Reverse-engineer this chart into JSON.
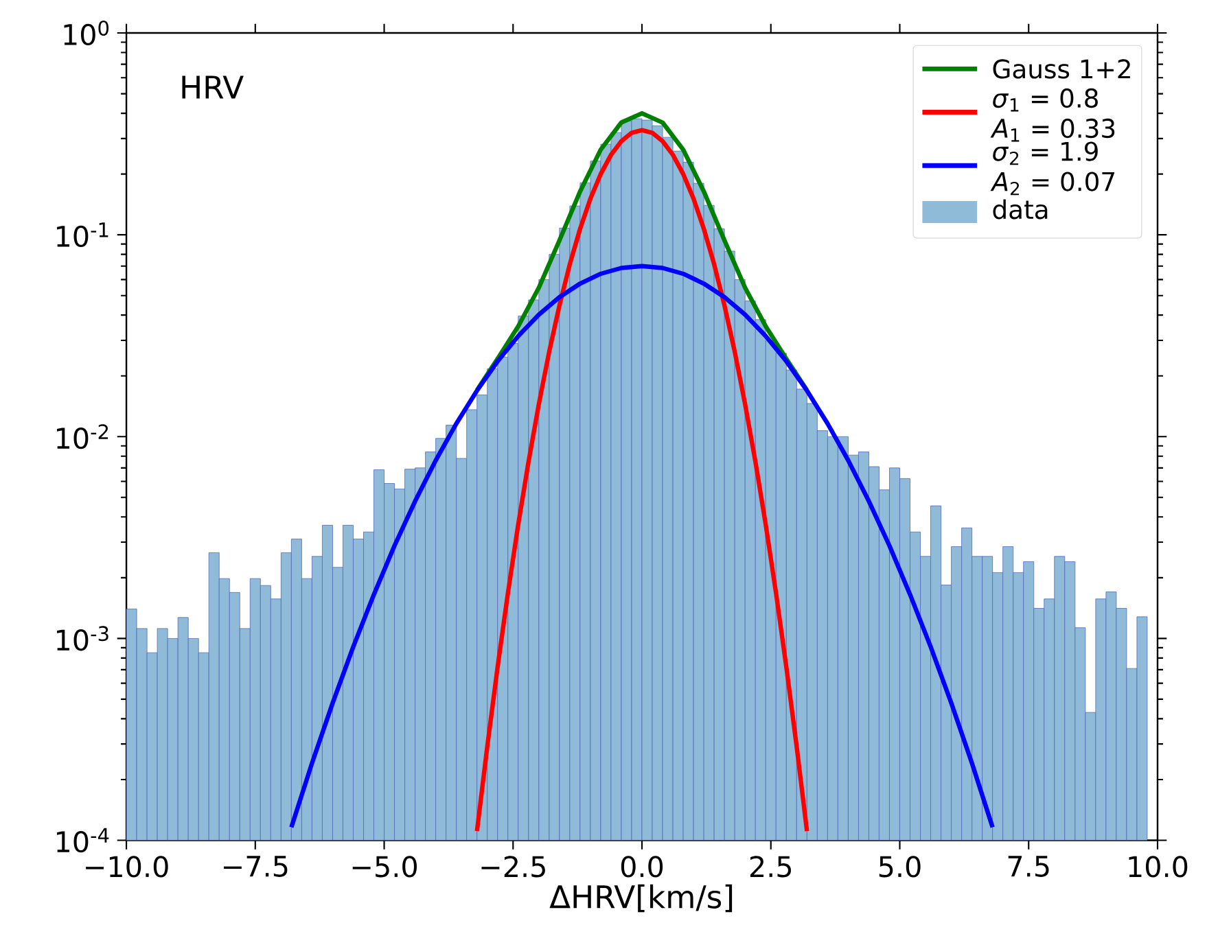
{
  "chart_data": {
    "type": "histogram",
    "xlabel": "ΔHRV[km/s]",
    "annotations": [
      "HRV"
    ],
    "series": [
      {
        "name": "Gauss 1+2",
        "type": "line",
        "color": "#008000",
        "x": [
          -3.2,
          -2.8,
          -2.4,
          -2.0,
          -1.6,
          -1.2,
          -0.8,
          -0.4,
          0,
          0.4,
          0.8,
          1.2,
          1.6,
          2.0,
          2.4,
          2.8,
          3.2
        ],
        "values": [
          0.017,
          0.0243,
          0.0352,
          0.0547,
          0.0938,
          0.164,
          0.264,
          0.36,
          0.4,
          0.36,
          0.264,
          0.164,
          0.0938,
          0.0547,
          0.0352,
          0.0243,
          0.017
        ]
      },
      {
        "name": "*σ*$_{1}$ = 0.8 *A*$_{1}$ = 0.33",
        "type": "line",
        "color": "#ff0000",
        "x": [
          -3.2,
          -3.0,
          -2.8,
          -2.6,
          -2.4,
          -2.2,
          -2.0,
          -1.8,
          -1.6,
          -1.4,
          -1.2,
          -1.0,
          -0.8,
          -0.6,
          -0.4,
          -0.2,
          0,
          0.2,
          0.4,
          0.6,
          0.8,
          1.0,
          1.2,
          1.4,
          1.6,
          1.8,
          2.0,
          2.2,
          2.4,
          2.6,
          2.8,
          3.0,
          3.2
        ],
        "values": [
          0.000111,
          0.000292,
          0.000722,
          0.00168,
          0.00367,
          0.00752,
          0.0145,
          0.0263,
          0.0447,
          0.0714,
          0.107,
          0.151,
          0.2,
          0.249,
          0.291,
          0.32,
          0.33,
          0.32,
          0.291,
          0.249,
          0.2,
          0.151,
          0.107,
          0.0714,
          0.0447,
          0.0263,
          0.0145,
          0.00752,
          0.00367,
          0.00168,
          0.000722,
          0.000292,
          0.000111
        ]
      },
      {
        "name": "*σ*$_{2}$ = 1.9 *A*$_{2}$ = 0.07",
        "type": "line",
        "color": "#0000ff",
        "x": [
          -6.8,
          -6.4,
          -6.0,
          -5.6,
          -5.2,
          -4.8,
          -4.4,
          -4.0,
          -3.6,
          -3.2,
          -2.8,
          -2.4,
          -2.0,
          -1.6,
          -1.2,
          -0.8,
          -0.4,
          0,
          0.4,
          0.8,
          1.2,
          1.6,
          2.0,
          2.4,
          2.8,
          3.2,
          3.6,
          4.0,
          4.4,
          4.8,
          5.2,
          5.6,
          6.0,
          6.4,
          6.8
        ],
        "values": [
          0.000116,
          0.000241,
          0.000478,
          0.000909,
          0.00165,
          0.00288,
          0.00479,
          0.00763,
          0.0116,
          0.0169,
          0.0236,
          0.0315,
          0.0402,
          0.0491,
          0.0573,
          0.0641,
          0.0685,
          0.07,
          0.0685,
          0.0641,
          0.0573,
          0.0491,
          0.0402,
          0.0315,
          0.0236,
          0.0169,
          0.0116,
          0.00763,
          0.00479,
          0.00288,
          0.00165,
          0.000909,
          0.000478,
          0.000241,
          0.000116
        ]
      },
      {
        "name": "data",
        "type": "histogram",
        "color": "#8fbbd9",
        "bins": [
          -10,
          -9.8,
          -9.6,
          -9.4,
          -9.2,
          -9,
          -8.8,
          -8.6,
          -8.4,
          -8.2,
          -8,
          -7.8,
          -7.6,
          -7.4,
          -7.2,
          -7,
          -6.8,
          -6.6,
          -6.4,
          -6.2,
          -6,
          -5.8,
          -5.6,
          -5.4,
          -5.2,
          -5,
          -4.8,
          -4.6,
          -4.4,
          -4.2,
          -4,
          -3.8,
          -3.6,
          -3.4,
          -3.2,
          -3,
          -2.8,
          -2.6,
          -2.4,
          -2.2,
          -2,
          -1.8,
          -1.6,
          -1.4,
          -1.2,
          -1,
          -0.8,
          -0.6,
          -0.4,
          -0.2,
          0,
          0.2,
          0.4,
          0.6,
          0.8,
          1,
          1.2,
          1.4,
          1.6,
          1.8,
          2,
          2.2,
          2.4,
          2.6,
          2.8,
          3,
          3.2,
          3.4,
          3.6,
          3.8,
          4,
          4.2,
          4.4,
          4.6,
          4.8,
          5,
          5.2,
          5.4,
          5.6,
          5.8,
          6,
          6.2,
          6.4,
          6.6,
          6.8,
          7,
          7.2,
          7.4,
          7.6,
          7.8,
          8,
          8.2,
          8.4,
          8.6,
          8.8,
          9,
          9.2,
          9.4,
          9.6,
          9.8
        ],
        "values": [
          0.0014,
          0.00112,
          0.00085,
          0.00112,
          0.001,
          0.00127,
          0.001,
          0.00085,
          0.00266,
          0.00198,
          0.00169,
          0.00112,
          0.00198,
          0.00183,
          0.00157,
          0.00266,
          0.00311,
          0.00198,
          0.00255,
          0.00364,
          0.00225,
          0.00364,
          0.00311,
          0.00337,
          0.00685,
          0.00586,
          0.0055,
          0.0069,
          0.007,
          0.0084,
          0.0098,
          0.0114,
          0.0078,
          0.0136,
          0.0161,
          0.0217,
          0.0248,
          0.029,
          0.0396,
          0.0476,
          0.06,
          0.08,
          0.108,
          0.139,
          0.181,
          0.232,
          0.281,
          0.321,
          0.366,
          0.376,
          0.37,
          0.347,
          0.304,
          0.26,
          0.229,
          0.18,
          0.14,
          0.107,
          0.083,
          0.06,
          0.047,
          0.038,
          0.0298,
          0.0259,
          0.0214,
          0.0172,
          0.0146,
          0.0107,
          0.01,
          0.01,
          0.0081,
          0.0084,
          0.0071,
          0.00545,
          0.007,
          0.0062,
          0.00337,
          0.00255,
          0.00454,
          0.00184,
          0.00285,
          0.00353,
          0.00255,
          0.00255,
          0.00212,
          0.00285,
          0.00212,
          0.0024,
          0.00141,
          0.00157,
          0.00255,
          0.0024,
          0.00113,
          0.00043,
          0.00157,
          0.0017,
          0.00141,
          0.00071,
          0.00128
        ]
      }
    ],
    "xlim": [
      -10,
      10
    ],
    "ylim": [
      0.0001,
      1
    ],
    "xticks": [
      {
        "value": -10,
        "label": "−10.0"
      },
      {
        "value": -7.5,
        "label": "−7.5"
      },
      {
        "value": -5,
        "label": "−5.0"
      },
      {
        "value": -2.5,
        "label": "−2.5"
      },
      {
        "value": 0,
        "label": "0.0"
      },
      {
        "value": 2.5,
        "label": "2.5"
      },
      {
        "value": 5,
        "label": "5.0"
      },
      {
        "value": 7.5,
        "label": "7.5"
      },
      {
        "value": 10,
        "label": "10.0"
      }
    ],
    "yticks": [
      {
        "value": 0.0001,
        "label": "10$^{-4}$"
      },
      {
        "value": 0.001,
        "label": "10$^{-3}$"
      },
      {
        "value": 0.01,
        "label": "10$^{-2}$"
      },
      {
        "value": 0.1,
        "label": "10$^{-1}$"
      },
      {
        "value": 1,
        "label": "10$^{0}$"
      }
    ],
    "log": "y",
    "legend": "top right"
  }
}
